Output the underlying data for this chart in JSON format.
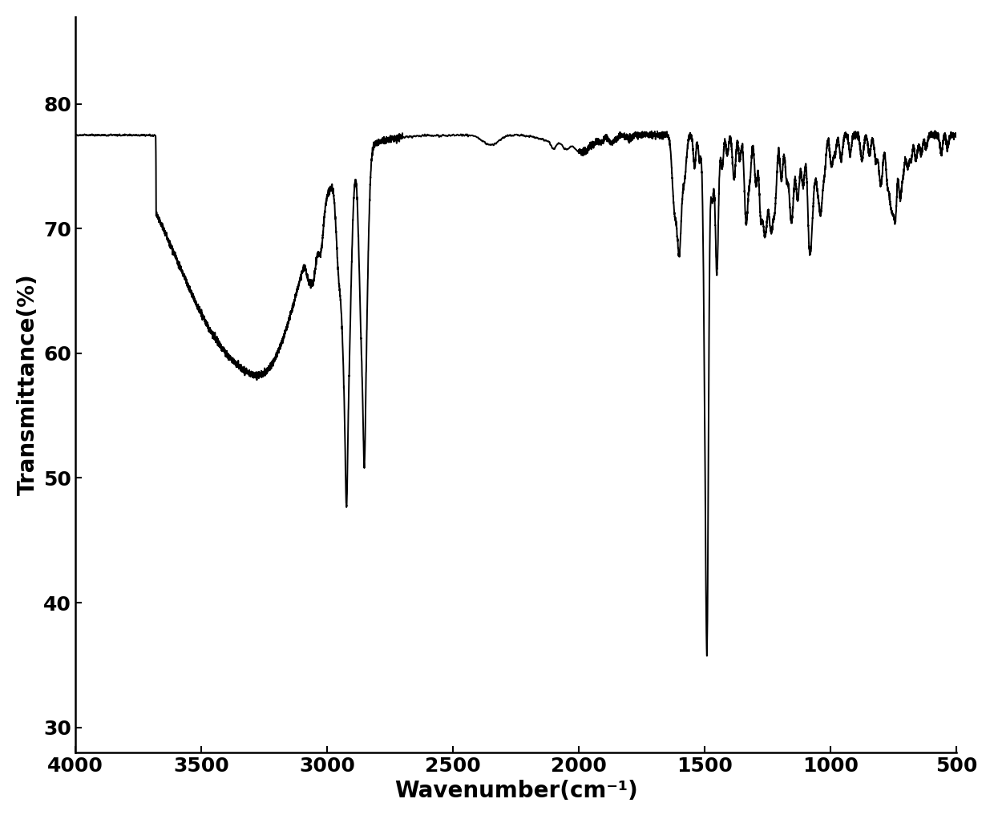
{
  "xlabel": "Wavenumber(cm⁻¹)",
  "ylabel": "Transmittance(%)",
  "xlim": [
    4000,
    500
  ],
  "ylim": [
    28,
    87
  ],
  "yticks": [
    30,
    40,
    50,
    60,
    70,
    80
  ],
  "xticks": [
    4000,
    3500,
    3000,
    2500,
    2000,
    1500,
    1000,
    500
  ],
  "line_color": "#000000",
  "background_color": "#ffffff",
  "line_width": 1.4,
  "xlabel_fontsize": 20,
  "ylabel_fontsize": 20,
  "tick_fontsize": 18
}
